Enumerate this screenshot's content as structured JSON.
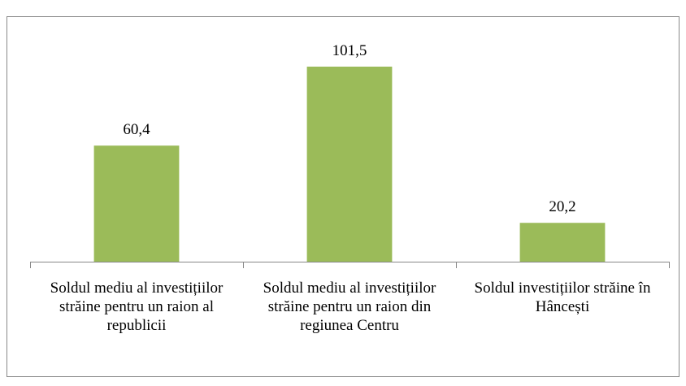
{
  "chart_data": {
    "type": "bar",
    "categories": [
      "Soldul mediu al investițiilor străine pentru un raion al republicii",
      "Soldul mediu al investițiilor străine pentru un raion  din regiunea Centru",
      "Soldul investițiilor străine în Hâncești"
    ],
    "values": [
      60.4,
      101.5,
      20.2
    ],
    "value_labels": [
      "60,4",
      "101,5",
      "20,2"
    ],
    "color": "#9bbb59"
  }
}
